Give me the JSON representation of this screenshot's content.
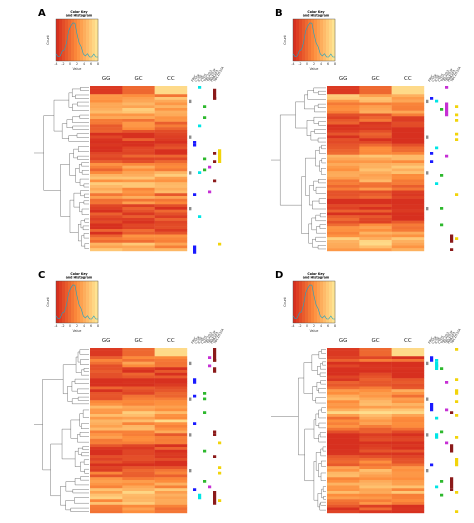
{
  "panels": [
    {
      "label": "A",
      "color_key": {
        "title": "Color Key\nand Histogram",
        "x_label": "Value",
        "y_label": "Count",
        "ticks": [
          "-4",
          "-2",
          "0",
          "2",
          "4",
          "6",
          "8"
        ]
      },
      "columns": [
        "GG",
        "GC",
        "CC"
      ],
      "annotation_labels": [
        "FRIC",
        "CTSE",
        "ICSE",
        "CTDS",
        "TBC1D3",
        "TBC1D3F",
        "PIRKAP1",
        "TBC1D32A"
      ]
    },
    {
      "label": "B",
      "color_key": {
        "title": "Color Key\nand Histogram",
        "x_label": "Value",
        "y_label": "Count",
        "ticks": [
          "-4",
          "-2",
          "0",
          "2",
          "4",
          "6",
          "8"
        ]
      },
      "columns": [
        "GG",
        "GC",
        "CC"
      ],
      "annotation_labels": [
        "FRIC",
        "CTSE",
        "ICSE",
        "CTDS",
        "TBC1D3",
        "TBC1D3F",
        "PIRKAP1",
        "TBC1D32A"
      ]
    },
    {
      "label": "C",
      "color_key": {
        "title": "Color Key\nand Histogram",
        "x_label": "Value",
        "y_label": "Count",
        "ticks": [
          "-4",
          "-2",
          "0",
          "2",
          "4",
          "6",
          "8"
        ]
      },
      "columns": [
        "GG",
        "GC",
        "CC"
      ],
      "annotation_labels": [
        "FRIC",
        "CTSE",
        "ICSE",
        "CTDS",
        "TBC1D3",
        "TBC1D3F",
        "PIRKAP1",
        "TBC1D32A"
      ]
    },
    {
      "label": "D",
      "color_key": {
        "title": "Color Key\nand Histogram",
        "x_label": "Value",
        "y_label": "Count",
        "ticks": [
          "-4",
          "-2",
          "0",
          "2",
          "4",
          "6",
          "8"
        ]
      },
      "columns": [
        "GG",
        "GC",
        "CC"
      ],
      "annotation_labels": [
        "FRIC",
        "CTSE",
        "ICSE",
        "CTDS",
        "TBC1D3",
        "TBC1D3F",
        "PIRKAP1",
        "TBC1D32A"
      ]
    }
  ],
  "colors": {
    "heat_low": "#d7301f",
    "heat_mid": "#fd8d3c",
    "heat_high": "#fee391",
    "annotation_palette": [
      "#1a1aff",
      "#00e5e5",
      "#2db82d",
      "#c62fd4",
      "#8b1a1a",
      "#f2d40a",
      "#000080",
      "#7f7f7f"
    ]
  }
}
